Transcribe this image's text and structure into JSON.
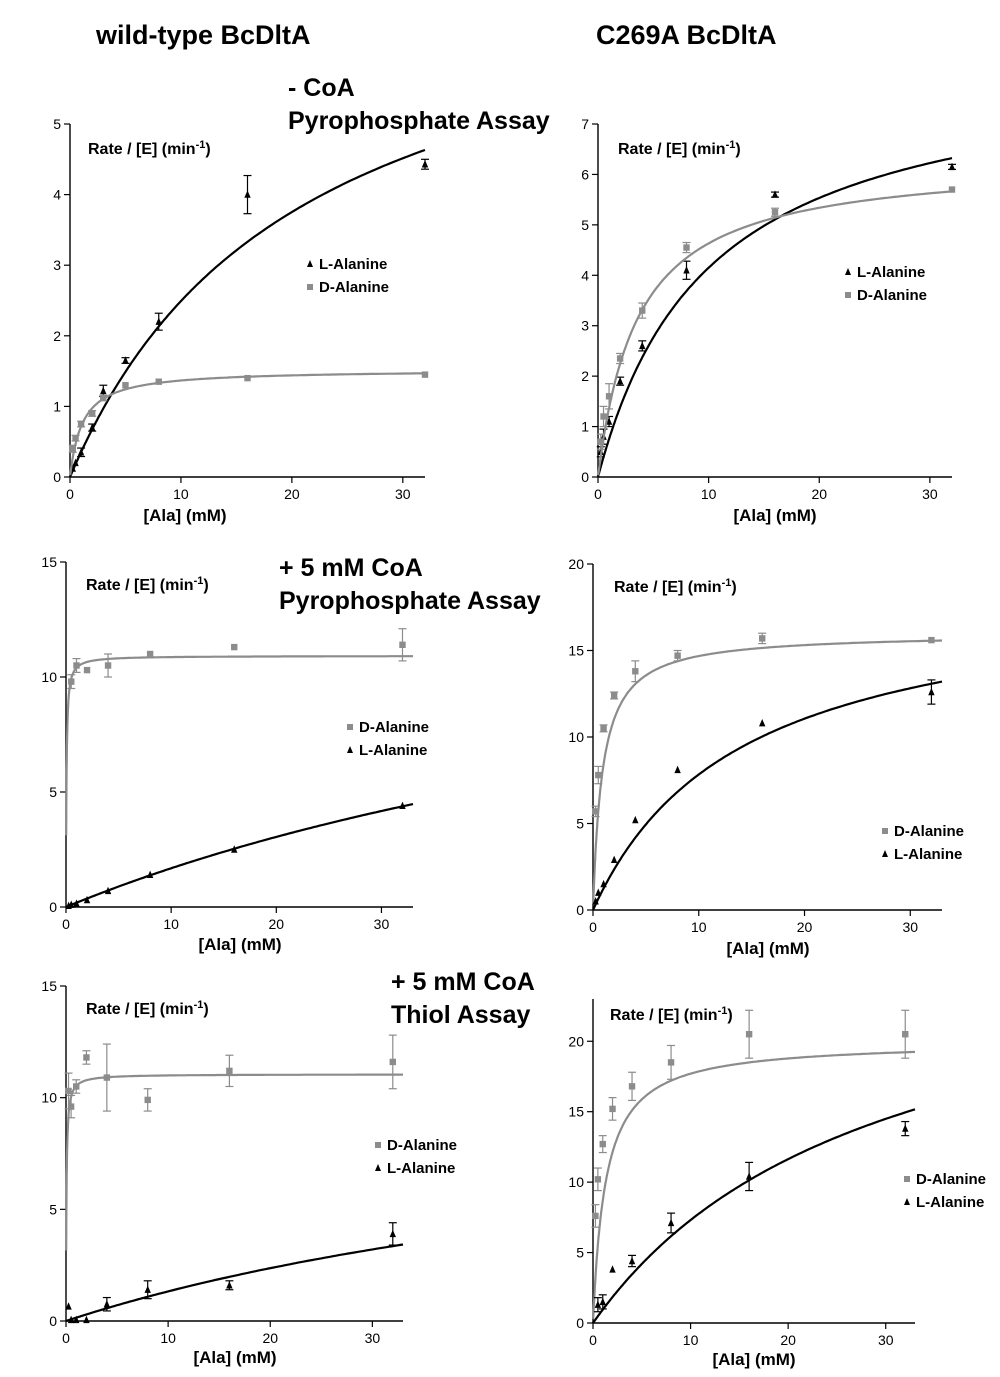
{
  "columns": {
    "left_title": "wild-type BcDltA",
    "right_title": "C269A BcDltA"
  },
  "rows": [
    {
      "condition_line1": "- CoA",
      "condition_line2": "Pyrophosphate Assay"
    },
    {
      "condition_line1": "+ 5 mM CoA",
      "condition_line2": "Pyrophosphate Assay"
    },
    {
      "condition_line1": "+ 5 mM CoA",
      "condition_line2": "Thiol Assay"
    }
  ],
  "colors": {
    "L-Alanine": "#000000",
    "D-Alanine": "#8c8c8c"
  },
  "chart_data": [
    {
      "type": "scatter",
      "panel": "wild-type BcDltA, - CoA, Pyrophosphate Assay",
      "xlabel": "[Ala]  (mM)",
      "ylabel": "Rate / [E]  (min",
      "ylabel_sup": "-1",
      "ylabel_end": ")",
      "xlim": [
        0,
        32
      ],
      "ylim": [
        0,
        5
      ],
      "xticks": [
        0,
        10,
        20,
        30
      ],
      "yticks": [
        0,
        1,
        2,
        3,
        4,
        5
      ],
      "legend": "center-right",
      "series": [
        {
          "name": "L-Alanine",
          "marker": "triangle",
          "x": [
            0.25,
            0.5,
            1,
            2,
            3,
            5,
            8,
            16,
            32
          ],
          "y": [
            0.12,
            0.2,
            0.35,
            0.7,
            1.22,
            1.65,
            2.2,
            4.0,
            4.43
          ],
          "err": [
            0.03,
            0.03,
            0.06,
            0.05,
            0.08,
            0.04,
            0.12,
            0.27,
            0.07
          ],
          "fit": {
            "vmax": 7.6,
            "km": 20.5
          }
        },
        {
          "name": "D-Alanine",
          "marker": "square",
          "x": [
            0.25,
            0.5,
            1,
            2,
            3,
            5,
            8,
            16,
            32
          ],
          "y": [
            0.4,
            0.55,
            0.75,
            0.9,
            1.12,
            1.3,
            1.35,
            1.4,
            1.45
          ],
          "err": [
            0.05,
            0.04,
            0.04,
            0.04,
            0.04,
            0.03,
            0.03,
            0.03,
            0.02
          ],
          "fit": {
            "vmax": 1.52,
            "km": 1.12
          }
        }
      ]
    },
    {
      "type": "scatter",
      "panel": "C269A BcDltA, - CoA, Pyrophosphate Assay",
      "xlabel": "[Ala]  (mM)",
      "ylabel": "Rate / [E]  (min",
      "ylabel_sup": "-1",
      "ylabel_end": ")",
      "xlim": [
        0,
        32
      ],
      "ylim": [
        0,
        7
      ],
      "xticks": [
        0,
        10,
        20,
        30
      ],
      "yticks": [
        0,
        1,
        2,
        3,
        4,
        5,
        6,
        7
      ],
      "legend": "center-right",
      "series": [
        {
          "name": "L-Alanine",
          "marker": "triangle",
          "x": [
            0.25,
            0.5,
            1,
            2,
            4,
            8,
            16,
            32
          ],
          "y": [
            0.5,
            0.8,
            1.1,
            1.9,
            2.6,
            4.1,
            5.6,
            6.15
          ],
          "err": [
            0.1,
            0.15,
            0.1,
            0.08,
            0.1,
            0.18,
            0.05,
            0.05
          ],
          "fit": {
            "vmax": 8.3,
            "km": 10.0
          }
        },
        {
          "name": "D-Alanine",
          "marker": "square",
          "x": [
            0.25,
            0.5,
            1,
            2,
            4,
            8,
            16,
            32
          ],
          "y": [
            0.7,
            1.2,
            1.6,
            2.35,
            3.3,
            4.55,
            5.25,
            5.7
          ],
          "err": [
            0.15,
            0.2,
            0.25,
            0.1,
            0.15,
            0.1,
            0.08,
            0.04
          ],
          "fit": {
            "vmax": 6.3,
            "km": 3.6
          }
        }
      ]
    },
    {
      "type": "scatter",
      "panel": "wild-type BcDltA, + 5 mM CoA, Pyrophosphate Assay",
      "xlabel": "[Ala]  (mM)",
      "ylabel": "Rate / [E]  (min",
      "ylabel_sup": "-1",
      "ylabel_end": ")",
      "xlim": [
        0,
        33
      ],
      "ylim": [
        0,
        15
      ],
      "xticks": [
        0,
        10,
        20,
        30
      ],
      "yticks": [
        0,
        5,
        10,
        15
      ],
      "legend": "center-right",
      "series": [
        {
          "name": "D-Alanine",
          "marker": "square",
          "x": [
            0.5,
            1,
            2,
            4,
            8,
            16,
            32
          ],
          "y": [
            9.8,
            10.5,
            10.3,
            10.5,
            11.0,
            11.3,
            11.4
          ],
          "err": [
            0.3,
            0.3,
            0.1,
            0.5,
            0.1,
            0.1,
            0.7
          ],
          "fit": {
            "vmax": 10.92,
            "km": 0.05
          }
        },
        {
          "name": "L-Alanine",
          "marker": "triangle",
          "x": [
            0.25,
            0.5,
            1,
            2,
            4,
            8,
            16,
            32
          ],
          "y": [
            0.05,
            0.1,
            0.15,
            0.3,
            0.7,
            1.4,
            2.5,
            4.4
          ],
          "err": [
            0.02,
            0.02,
            0.02,
            0.03,
            0.03,
            0.05,
            0.05,
            0.05
          ],
          "fit": {
            "vmax": 16.0,
            "km": 85.0
          }
        }
      ]
    },
    {
      "type": "scatter",
      "panel": "C269A BcDltA, + 5 mM CoA, Pyrophosphate Assay",
      "xlabel": "[Ala]  (mM)",
      "ylabel": "Rate / [E]  (min",
      "ylabel_sup": "-1",
      "ylabel_end": ")",
      "xlim": [
        0,
        33
      ],
      "ylim": [
        0,
        20
      ],
      "xticks": [
        0,
        10,
        20,
        30
      ],
      "yticks": [
        0,
        5,
        10,
        15,
        20
      ],
      "legend": "bottom-right",
      "series": [
        {
          "name": "D-Alanine",
          "marker": "square",
          "x": [
            0.25,
            0.5,
            1,
            2,
            4,
            8,
            16,
            32
          ],
          "y": [
            5.7,
            7.8,
            10.5,
            12.4,
            13.8,
            14.7,
            15.7,
            15.6
          ],
          "err": [
            0.3,
            0.5,
            0.2,
            0.2,
            0.6,
            0.3,
            0.3,
            0.1
          ],
          "fit": {
            "vmax": 16.0,
            "km": 0.9
          }
        },
        {
          "name": "L-Alanine",
          "marker": "triangle",
          "x": [
            0.25,
            0.5,
            1,
            2,
            4,
            8,
            16,
            32
          ],
          "y": [
            0.5,
            1.0,
            1.5,
            2.9,
            5.2,
            8.1,
            10.8,
            12.6
          ],
          "err": [
            0.05,
            0.1,
            0.1,
            0.1,
            0.1,
            0.1,
            0.1,
            0.7
          ],
          "fit": {
            "vmax": 18.8,
            "km": 14.0
          }
        }
      ]
    },
    {
      "type": "scatter",
      "panel": "wild-type BcDltA, + 5 mM CoA, Thiol Assay",
      "xlabel": "[Ala]  (mM)",
      "ylabel": "Rate / [E]  (min",
      "ylabel_sup": "-1",
      "ylabel_end": ")",
      "xlim": [
        0,
        33
      ],
      "ylim": [
        0,
        15
      ],
      "xticks": [
        0,
        10,
        20,
        30
      ],
      "yticks": [
        0,
        5,
        10,
        15
      ],
      "legend": "center-right",
      "series": [
        {
          "name": "D-Alanine",
          "marker": "square",
          "x": [
            0.25,
            0.5,
            1,
            2,
            4,
            8,
            16,
            32
          ],
          "y": [
            10.3,
            9.6,
            10.5,
            11.8,
            10.9,
            9.9,
            11.2,
            11.6
          ],
          "err": [
            0.8,
            0.5,
            0.3,
            0.3,
            1.5,
            0.5,
            0.7,
            1.2
          ],
          "fit": {
            "vmax": 11.05,
            "km": 0.05
          }
        },
        {
          "name": "L-Alanine",
          "marker": "triangle",
          "x": [
            0.25,
            0.5,
            1,
            2,
            4,
            8,
            16,
            32
          ],
          "y": [
            0.65,
            0.05,
            0.05,
            0.05,
            0.75,
            1.4,
            1.6,
            3.9
          ],
          "err": [
            0.05,
            0.05,
            0.05,
            0.05,
            0.3,
            0.4,
            0.2,
            0.5
          ],
          "fit": {
            "vmax": 11.0,
            "km": 73.0
          }
        }
      ]
    },
    {
      "type": "scatter",
      "panel": "C269A BcDltA, + 5 mM CoA, Thiol Assay",
      "xlabel": "[Ala]  (mM)",
      "ylabel": "Rate / [E]  (min",
      "ylabel_sup": "-1",
      "ylabel_end": ")",
      "xlim": [
        0,
        33
      ],
      "ylim": [
        0,
        23
      ],
      "xticks": [
        0,
        10,
        20,
        30
      ],
      "yticks": [
        0,
        5,
        10,
        15,
        20
      ],
      "legend": "bottom-right",
      "series": [
        {
          "name": "D-Alanine",
          "marker": "square",
          "x": [
            0.25,
            0.5,
            1,
            2,
            4,
            8,
            16,
            32
          ],
          "y": [
            7.6,
            10.2,
            12.7,
            15.2,
            16.8,
            18.5,
            20.5,
            20.5
          ],
          "err": [
            0.8,
            0.8,
            0.6,
            0.8,
            1.0,
            1.2,
            1.7,
            1.7
          ],
          "fit": {
            "vmax": 20.0,
            "km": 1.3
          }
        },
        {
          "name": "L-Alanine",
          "marker": "triangle",
          "x": [
            0.5,
            1,
            2,
            4,
            8,
            16,
            32
          ],
          "y": [
            1.3,
            1.5,
            3.8,
            4.4,
            7.1,
            10.4,
            13.8
          ],
          "err": [
            0.5,
            0.5,
            0.1,
            0.4,
            0.7,
            1.0,
            0.5
          ],
          "fit": {
            "vmax": 28.5,
            "km": 29.0
          }
        }
      ]
    }
  ]
}
